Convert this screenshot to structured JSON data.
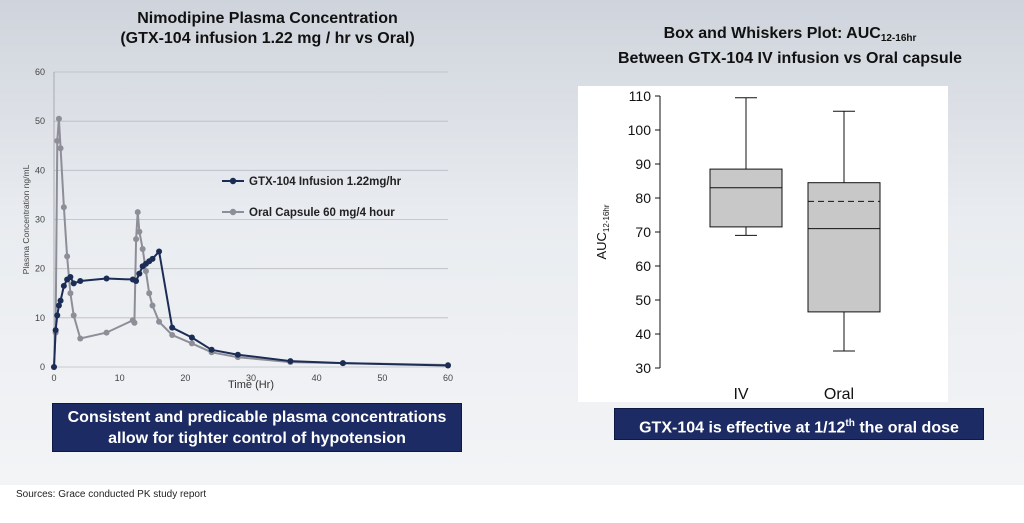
{
  "left_title_line1": "Nimodipine Plasma Concentration",
  "left_title_line2": "(GTX-104 infusion 1.22 mg / hr vs Oral)",
  "right_title_line1": "Box and Whiskers Plot: AUC",
  "right_title_sub": "12-16hr",
  "right_title_line2": "Between GTX-104 IV infusion vs Oral capsule",
  "left_banner": "Consistent and predicable plasma concentrations allow for tighter control of hypotension",
  "right_banner_pre": "GTX-104 is effective at 1/12",
  "right_banner_sup": "th",
  "right_banner_post": " the oral dose",
  "sources": "Sources: Grace conducted PK study report",
  "chart_data": [
    {
      "type": "line",
      "xlabel": "Time (Hr)",
      "ylabel": "Plasma Concentration ng/mL",
      "xlim": [
        0,
        60
      ],
      "ylim": [
        0,
        60
      ],
      "xticks": [
        0,
        10,
        20,
        30,
        40,
        50,
        60
      ],
      "yticks": [
        0,
        10,
        20,
        30,
        40,
        50,
        60
      ],
      "grid": "horizontal",
      "legend_position": "center-right",
      "series": [
        {
          "name": "GTX-104 Infusion 1.22mg/hr",
          "color": "#1c2d55",
          "points": [
            [
              0,
              0
            ],
            [
              0.25,
              7.5
            ],
            [
              0.5,
              10.5
            ],
            [
              0.75,
              12.5
            ],
            [
              1,
              13.5
            ],
            [
              1.5,
              16.5
            ],
            [
              2,
              17.8
            ],
            [
              2.5,
              18.3
            ],
            [
              3,
              17
            ],
            [
              4,
              17.5
            ],
            [
              8,
              18
            ],
            [
              12,
              17.8
            ],
            [
              12.5,
              17.5
            ],
            [
              13,
              19
            ],
            [
              13.5,
              20.5
            ],
            [
              14,
              21
            ],
            [
              14.5,
              21.5
            ],
            [
              15,
              22
            ],
            [
              16,
              23.5
            ],
            [
              18,
              8
            ],
            [
              21,
              6
            ],
            [
              24,
              3.5
            ],
            [
              28,
              2.5
            ],
            [
              36,
              1.2
            ],
            [
              44,
              0.8
            ],
            [
              60,
              0.3
            ]
          ]
        },
        {
          "name": "Oral Capsule 60 mg/4 hour",
          "color": "#8e8e98",
          "points": [
            [
              0,
              0
            ],
            [
              0.25,
              7
            ],
            [
              0.5,
              46
            ],
            [
              0.75,
              50.5
            ],
            [
              1,
              44.5
            ],
            [
              1.5,
              32.5
            ],
            [
              2,
              22.5
            ],
            [
              2.5,
              15
            ],
            [
              3,
              10.5
            ],
            [
              4,
              5.8
            ],
            [
              8,
              7
            ],
            [
              12,
              9.5
            ],
            [
              12.25,
              9
            ],
            [
              12.5,
              26
            ],
            [
              12.75,
              31.5
            ],
            [
              13,
              27.5
            ],
            [
              13.5,
              24
            ],
            [
              14,
              19.5
            ],
            [
              14.5,
              15
            ],
            [
              15,
              12.5
            ],
            [
              16,
              9.2
            ],
            [
              18,
              6.5
            ],
            [
              21,
              4.8
            ],
            [
              24,
              3
            ],
            [
              28,
              2
            ],
            [
              36,
              1
            ],
            [
              44,
              0.8
            ],
            [
              60,
              0.4
            ]
          ]
        }
      ]
    },
    {
      "type": "box",
      "ylabel": "AUC",
      "ylabel_sub": "12-16hr",
      "ylim": [
        30,
        110
      ],
      "yticks": [
        30,
        40,
        50,
        60,
        70,
        80,
        90,
        100,
        110
      ],
      "categories": [
        "IV",
        "Oral"
      ],
      "boxes": [
        {
          "label": "IV",
          "min": 69,
          "q1": 71.5,
          "median": 83,
          "q3": 88.5,
          "max": 109.5
        },
        {
          "label": "Oral",
          "min": 35,
          "q1": 46.5,
          "median": 71,
          "mean": 79,
          "q3": 84.5,
          "max": 105.5
        }
      ],
      "box_fill": "#c8c8c8"
    }
  ]
}
